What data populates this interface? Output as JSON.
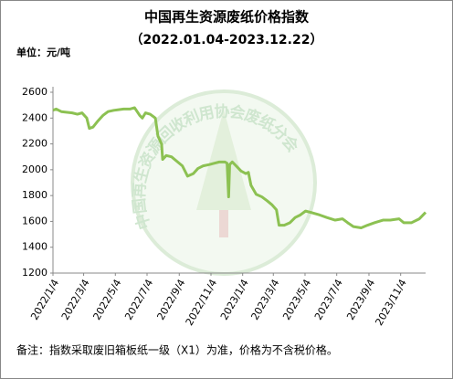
{
  "chart_data": {
    "type": "line",
    "title": "中国再生资源废纸价格指数",
    "subtitle": "（2022.01.04-2023.12.22）",
    "unit_label": "单位：元/吨",
    "note": "备注：指数采取废旧箱板纸一级（X1）为准，价格为不含税价格。",
    "watermark": "中国再生资源回收利用协会废纸分会",
    "x": [
      "2022/1/4",
      "2022/1/10",
      "2022/1/20",
      "2022/2/10",
      "2022/2/20",
      "2022/3/1",
      "2022/3/10",
      "2022/3/15",
      "2022/3/22",
      "2022/4/1",
      "2022/4/10",
      "2022/4/20",
      "2022/5/1",
      "2022/5/20",
      "2022/6/1",
      "2022/6/10",
      "2022/6/20",
      "2022/6/25",
      "2022/7/1",
      "2022/7/10",
      "2022/7/20",
      "2022/7/25",
      "2022/8/1",
      "2022/8/3",
      "2022/8/10",
      "2022/8/20",
      "2022/9/1",
      "2022/9/10",
      "2022/9/20",
      "2022/10/1",
      "2022/10/10",
      "2022/10/20",
      "2022/11/1",
      "2022/11/10",
      "2022/11/20",
      "2022/12/1",
      "2022/12/5",
      "2022/12/8",
      "2022/12/10",
      "2022/12/15",
      "2022/12/20",
      "2023/1/1",
      "2023/1/10",
      "2023/1/15",
      "2023/1/20",
      "2023/1/30",
      "2023/2/10",
      "2023/2/20",
      "2023/3/1",
      "2023/3/10",
      "2023/3/15",
      "2023/3/25",
      "2023/4/5",
      "2023/4/15",
      "2023/4/25",
      "2023/5/5",
      "2023/5/15",
      "2023/6/1",
      "2023/6/15",
      "2023/7/1",
      "2023/7/15",
      "2023/7/25",
      "2023/8/5",
      "2023/8/20",
      "2023/9/1",
      "2023/9/15",
      "2023/10/1",
      "2023/10/15",
      "2023/11/1",
      "2023/11/10",
      "2023/11/25",
      "2023/12/10",
      "2023/12/22"
    ],
    "series": [
      {
        "name": "废纸价格指数",
        "color": "#8cc152",
        "values": [
          2460,
          2470,
          2450,
          2440,
          2430,
          2440,
          2400,
          2320,
          2330,
          2380,
          2420,
          2450,
          2460,
          2470,
          2470,
          2480,
          2420,
          2400,
          2440,
          2430,
          2400,
          2260,
          2200,
          2080,
          2110,
          2100,
          2060,
          2030,
          1950,
          1970,
          2010,
          2030,
          2040,
          2050,
          2060,
          2060,
          2050,
          1790,
          2040,
          2060,
          2040,
          1990,
          1970,
          1980,
          1880,
          1810,
          1790,
          1760,
          1730,
          1690,
          1570,
          1570,
          1590,
          1630,
          1650,
          1680,
          1670,
          1650,
          1630,
          1610,
          1620,
          1590,
          1560,
          1550,
          1570,
          1590,
          1610,
          1610,
          1620,
          1590,
          1590,
          1620,
          1670
        ]
      }
    ],
    "xlim": [
      "2022/1/4",
      "2023/12/22"
    ],
    "xticks": [
      "2022/1/4",
      "2022/3/4",
      "2022/5/4",
      "2022/7/4",
      "2022/9/4",
      "2022/11/4",
      "2023/1/4",
      "2023/3/4",
      "2023/5/4",
      "2023/7/4",
      "2023/9/4",
      "2023/11/4"
    ],
    "ylim": [
      1200,
      2600
    ],
    "yticks": [
      1200,
      1400,
      1600,
      1800,
      2000,
      2200,
      2400,
      2600
    ],
    "grid": false
  }
}
